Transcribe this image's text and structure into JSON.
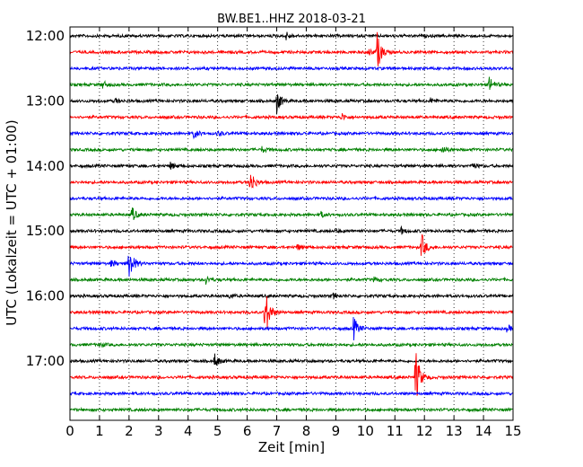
{
  "chart_data": {
    "type": "line",
    "title": "BW.BE1..HHZ 2018-03-21",
    "xlabel": "Zeit  [min]",
    "ylabel": "UTC (Lokalzeit = UTC + 01:00)",
    "xlim": [
      0,
      15
    ],
    "x_ticks": [
      "0",
      "1",
      "2",
      "3",
      "4",
      "5",
      "6",
      "7",
      "8",
      "9",
      "10",
      "11",
      "12",
      "13",
      "14",
      "15"
    ],
    "y_ticks": [
      "12:00",
      "13:00",
      "14:00",
      "15:00",
      "16:00",
      "17:00"
    ],
    "grid": "vertical dotted at each minute",
    "trace_interval_min": 15,
    "series_colors": [
      "#000000",
      "#ff0000",
      "#0000ff",
      "#008000"
    ],
    "traces": [
      {
        "start": "12:00",
        "events": [
          {
            "t": 7.3,
            "amp": 5
          }
        ]
      },
      {
        "start": "12:15",
        "events": [
          {
            "t": 10.4,
            "amp": 22
          },
          {
            "t": 10.1,
            "amp": 4
          }
        ]
      },
      {
        "start": "12:30",
        "events": []
      },
      {
        "start": "12:45",
        "events": [
          {
            "t": 1.1,
            "amp": 4
          },
          {
            "t": 14.2,
            "amp": 9
          }
        ]
      },
      {
        "start": "13:00",
        "events": [
          {
            "t": 7.0,
            "amp": 14
          },
          {
            "t": 1.5,
            "amp": 3
          },
          {
            "t": 12.2,
            "amp": 3
          }
        ]
      },
      {
        "start": "13:15",
        "events": [
          {
            "t": 9.2,
            "amp": 4
          }
        ]
      },
      {
        "start": "13:30",
        "events": [
          {
            "t": 4.2,
            "amp": 6
          },
          {
            "t": 5.0,
            "amp": 3
          }
        ]
      },
      {
        "start": "13:45",
        "events": [
          {
            "t": 6.5,
            "amp": 3
          },
          {
            "t": 12.6,
            "amp": 5
          }
        ]
      },
      {
        "start": "14:00",
        "events": [
          {
            "t": 3.4,
            "amp": 4
          },
          {
            "t": 13.6,
            "amp": 4
          }
        ]
      },
      {
        "start": "14:15",
        "events": [
          {
            "t": 6.1,
            "amp": 16
          }
        ]
      },
      {
        "start": "14:30",
        "events": []
      },
      {
        "start": "14:45",
        "events": [
          {
            "t": 2.1,
            "amp": 9
          },
          {
            "t": 8.5,
            "amp": 3
          }
        ]
      },
      {
        "start": "15:00",
        "events": [
          {
            "t": 11.2,
            "amp": 4
          },
          {
            "t": 9.0,
            "amp": 2
          }
        ]
      },
      {
        "start": "15:15",
        "events": [
          {
            "t": 11.9,
            "amp": 16
          },
          {
            "t": 7.7,
            "amp": 3
          }
        ]
      },
      {
        "start": "15:30",
        "events": [
          {
            "t": 2.0,
            "amp": 22
          },
          {
            "t": 1.4,
            "amp": 4
          }
        ]
      },
      {
        "start": "15:45",
        "events": [
          {
            "t": 4.6,
            "amp": 5
          },
          {
            "t": 10.3,
            "amp": 3
          }
        ]
      },
      {
        "start": "16:00",
        "events": [
          {
            "t": 5.4,
            "amp": 3
          },
          {
            "t": 8.9,
            "amp": 3
          }
        ]
      },
      {
        "start": "16:15",
        "events": [
          {
            "t": 6.6,
            "amp": 34
          }
        ]
      },
      {
        "start": "16:30",
        "events": [
          {
            "t": 9.6,
            "amp": 14
          },
          {
            "t": 14.8,
            "amp": 4
          }
        ]
      },
      {
        "start": "16:45",
        "events": [
          {
            "t": 1.0,
            "amp": 3
          }
        ]
      },
      {
        "start": "17:00",
        "events": [
          {
            "t": 4.9,
            "amp": 8
          }
        ]
      },
      {
        "start": "17:15",
        "events": [
          {
            "t": 11.7,
            "amp": 34
          }
        ]
      },
      {
        "start": "17:30",
        "events": []
      },
      {
        "start": "17:45",
        "events": []
      }
    ]
  }
}
